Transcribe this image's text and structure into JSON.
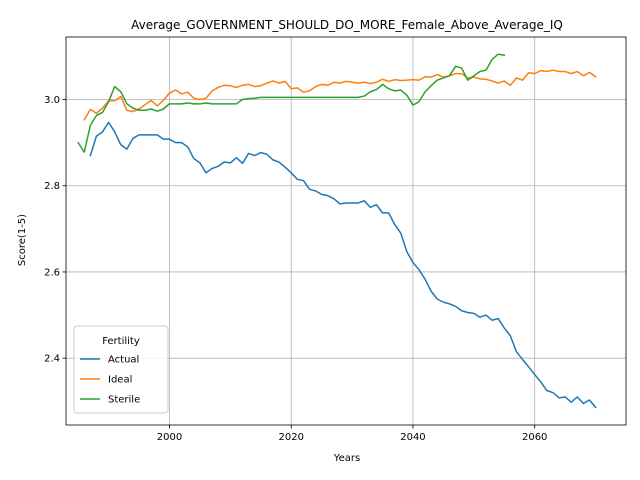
{
  "chart_data": {
    "type": "line",
    "title": "Average_GOVERNMENT_SHOULD_DO_MORE_Female_Above_Average_IQ",
    "xlabel": "Years",
    "ylabel": "Score(1-5)",
    "xlim": [
      1983,
      2075
    ],
    "ylim": [
      2.245,
      3.145
    ],
    "xticks": [
      2000,
      2020,
      2040,
      2060
    ],
    "yticks": [
      2.4,
      2.6,
      2.8,
      3.0
    ],
    "grid": true,
    "legend": {
      "title": "Fertility",
      "placement": "lower-left"
    },
    "series": [
      {
        "name": "Actual",
        "color": "#1f77b4",
        "x": [
          1987,
          1988,
          1989,
          1990,
          1991,
          1992,
          1993,
          1994,
          1995,
          1996,
          1997,
          1998,
          1999,
          2000,
          2001,
          2002,
          2003,
          2004,
          2005,
          2006,
          2007,
          2008,
          2009,
          2010,
          2011,
          2012,
          2013,
          2014,
          2015,
          2016,
          2017,
          2018,
          2019,
          2020,
          2021,
          2022,
          2023,
          2024,
          2025,
          2026,
          2027,
          2028,
          2029,
          2030,
          2031,
          2032,
          2033,
          2034,
          2035,
          2036,
          2037,
          2038,
          2039,
          2040,
          2041,
          2042,
          2043,
          2044,
          2045,
          2046,
          2047,
          2048,
          2049,
          2050,
          2051,
          2052,
          2053,
          2054,
          2055,
          2056,
          2057,
          2058,
          2059,
          2060,
          2061,
          2062,
          2063,
          2064,
          2065,
          2066,
          2067,
          2068,
          2069,
          2070
        ],
        "values": [
          2.87,
          2.915,
          2.925,
          2.947,
          2.925,
          2.895,
          2.885,
          2.91,
          2.918,
          2.918,
          2.918,
          2.918,
          2.908,
          2.908,
          2.9,
          2.9,
          2.89,
          2.863,
          2.853,
          2.83,
          2.84,
          2.845,
          2.855,
          2.853,
          2.865,
          2.852,
          2.875,
          2.87,
          2.877,
          2.873,
          2.86,
          2.855,
          2.843,
          2.83,
          2.815,
          2.812,
          2.792,
          2.788,
          2.78,
          2.777,
          2.77,
          2.758,
          2.76,
          2.76,
          2.76,
          2.765,
          2.75,
          2.756,
          2.737,
          2.737,
          2.71,
          2.69,
          2.647,
          2.622,
          2.605,
          2.583,
          2.555,
          2.537,
          2.53,
          2.526,
          2.52,
          2.51,
          2.506,
          2.504,
          2.495,
          2.5,
          2.488,
          2.492,
          2.47,
          2.452,
          2.415,
          2.397,
          2.38,
          2.362,
          2.345,
          2.325,
          2.32,
          2.308,
          2.31,
          2.298,
          2.31,
          2.295,
          2.303,
          2.286
        ]
      },
      {
        "name": "Ideal",
        "color": "#ff7f0e",
        "x": [
          1986,
          1987,
          1988,
          1989,
          1990,
          1991,
          1992,
          1993,
          1994,
          1995,
          1996,
          1997,
          1998,
          1999,
          2000,
          2001,
          2002,
          2003,
          2004,
          2005,
          2006,
          2007,
          2008,
          2009,
          2010,
          2011,
          2012,
          2013,
          2014,
          2015,
          2016,
          2017,
          2018,
          2019,
          2020,
          2021,
          2022,
          2023,
          2024,
          2025,
          2026,
          2027,
          2028,
          2029,
          2030,
          2031,
          2032,
          2033,
          2034,
          2035,
          2036,
          2037,
          2038,
          2039,
          2040,
          2041,
          2042,
          2043,
          2044,
          2045,
          2046,
          2047,
          2048,
          2049,
          2050,
          2051,
          2052,
          2053,
          2054,
          2055,
          2056,
          2057,
          2058,
          2059,
          2060,
          2061,
          2062,
          2063,
          2064,
          2065,
          2066,
          2067,
          2068,
          2069,
          2070
        ],
        "values": [
          2.953,
          2.977,
          2.968,
          2.98,
          2.997,
          2.997,
          3.007,
          2.975,
          2.972,
          2.978,
          2.988,
          2.998,
          2.985,
          2.998,
          3.015,
          3.022,
          3.013,
          3.017,
          3.003,
          3.0,
          3.003,
          3.02,
          3.028,
          3.033,
          3.032,
          3.028,
          3.033,
          3.035,
          3.03,
          3.032,
          3.038,
          3.043,
          3.038,
          3.042,
          3.025,
          3.027,
          3.017,
          3.02,
          3.03,
          3.035,
          3.033,
          3.04,
          3.038,
          3.042,
          3.04,
          3.038,
          3.04,
          3.037,
          3.04,
          3.047,
          3.042,
          3.046,
          3.044,
          3.045,
          3.046,
          3.045,
          3.053,
          3.052,
          3.058,
          3.052,
          3.055,
          3.06,
          3.06,
          3.05,
          3.052,
          3.048,
          3.047,
          3.043,
          3.038,
          3.043,
          3.033,
          3.05,
          3.045,
          3.062,
          3.06,
          3.067,
          3.065,
          3.068,
          3.065,
          3.065,
          3.06,
          3.065,
          3.055,
          3.063,
          3.053
        ]
      },
      {
        "name": "Sterile",
        "color": "#2ca02c",
        "x": [
          1985,
          1986,
          1987,
          1988,
          1989,
          1990,
          1991,
          1992,
          1993,
          1994,
          1995,
          1996,
          1997,
          1998,
          1999,
          2000,
          2001,
          2002,
          2003,
          2004,
          2005,
          2006,
          2007,
          2008,
          2009,
          2010,
          2011,
          2012,
          2013,
          2014,
          2015,
          2016,
          2017,
          2018,
          2019,
          2020,
          2021,
          2022,
          2023,
          2024,
          2025,
          2026,
          2027,
          2028,
          2029,
          2030,
          2031,
          2032,
          2033,
          2034,
          2035,
          2036,
          2037,
          2038,
          2039,
          2040,
          2041,
          2042,
          2043,
          2044,
          2045,
          2046,
          2047,
          2048,
          2049,
          2050,
          2051,
          2052,
          2053,
          2054,
          2055
        ],
        "values": [
          2.9,
          2.878,
          2.94,
          2.963,
          2.97,
          2.995,
          3.03,
          3.018,
          2.99,
          2.98,
          2.975,
          2.975,
          2.978,
          2.973,
          2.978,
          2.99,
          2.99,
          2.99,
          2.992,
          2.99,
          2.99,
          2.992,
          2.99,
          2.99,
          2.99,
          2.99,
          2.99,
          3.0,
          3.002,
          3.003,
          3.005,
          3.005,
          3.005,
          3.005,
          3.005,
          3.005,
          3.005,
          3.005,
          3.005,
          3.005,
          3.005,
          3.005,
          3.005,
          3.005,
          3.005,
          3.005,
          3.005,
          3.008,
          3.018,
          3.023,
          3.035,
          3.025,
          3.02,
          3.022,
          3.01,
          2.987,
          2.995,
          3.018,
          3.032,
          3.045,
          3.05,
          3.055,
          3.077,
          3.073,
          3.045,
          3.055,
          3.065,
          3.068,
          3.093,
          3.105,
          3.103
        ]
      }
    ]
  }
}
